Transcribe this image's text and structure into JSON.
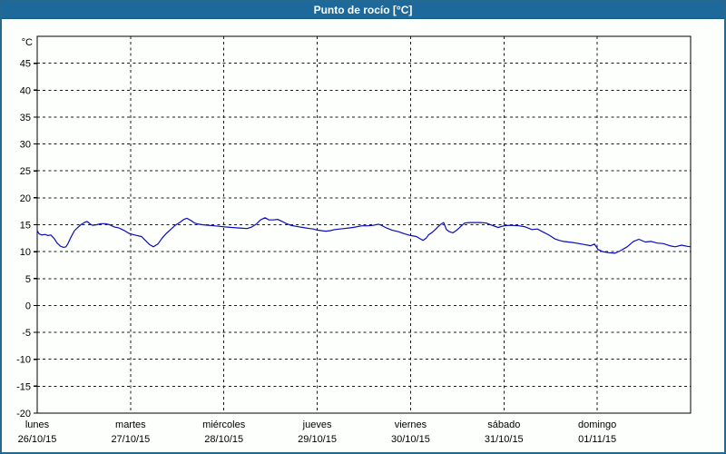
{
  "window": {
    "title": "Punto de rocío [°C]"
  },
  "colors": {
    "titlebar_bg": "#1e699c",
    "titlebar_text": "#ffffff",
    "frame_border": "#26698f",
    "plot_background": "#fdfffd",
    "axis": "#000000",
    "grid": "#1a1a1a",
    "line": "#0a0ac0"
  },
  "chart_data": {
    "type": "line",
    "title": "Punto de rocío [°C]",
    "y_unit": "°C",
    "ylim": [
      -20,
      50
    ],
    "y_tick_step": 5,
    "y_tick_labels": [
      45,
      40,
      35,
      30,
      25,
      20,
      15,
      10,
      5,
      0,
      -5,
      -10,
      -15,
      -20
    ],
    "grid": "dashed",
    "x_total_hours": 168,
    "x_days": [
      {
        "name": "lunes",
        "date": "26/10/15"
      },
      {
        "name": "martes",
        "date": "27/10/15"
      },
      {
        "name": "miércoles",
        "date": "28/10/15"
      },
      {
        "name": "jueves",
        "date": "29/10/15"
      },
      {
        "name": "viernes",
        "date": "30/10/15"
      },
      {
        "name": "sábado",
        "date": "31/10/15"
      },
      {
        "name": "domingo",
        "date": "01/11/15"
      }
    ],
    "series": [
      {
        "name": "Punto de rocío",
        "color": "#0a0ac0",
        "points": [
          [
            0,
            13.9
          ],
          [
            0.5,
            13.3
          ],
          [
            1.2,
            13.1
          ],
          [
            2,
            13.2
          ],
          [
            2.8,
            13.0
          ],
          [
            3.5,
            13.1
          ],
          [
            4.4,
            12.4
          ],
          [
            5.1,
            11.6
          ],
          [
            6,
            11.0
          ],
          [
            6.8,
            10.8
          ],
          [
            7.4,
            10.9
          ],
          [
            7.9,
            11.5
          ],
          [
            8.6,
            12.6
          ],
          [
            9.6,
            13.9
          ],
          [
            10.3,
            14.4
          ],
          [
            11.2,
            15.0
          ],
          [
            12.1,
            15.4
          ],
          [
            12.8,
            15.6
          ],
          [
            13.7,
            15.1
          ],
          [
            14.2,
            14.9
          ],
          [
            15.3,
            15.0
          ],
          [
            16.4,
            15.2
          ],
          [
            17.5,
            15.2
          ],
          [
            18.6,
            15.0
          ],
          [
            19.8,
            14.6
          ],
          [
            21,
            14.4
          ],
          [
            22.2,
            14.0
          ],
          [
            23.6,
            13.4
          ],
          [
            24.5,
            13.2
          ],
          [
            25.7,
            13.0
          ],
          [
            26.8,
            12.8
          ],
          [
            27.8,
            12.1
          ],
          [
            28.9,
            11.3
          ],
          [
            29.9,
            10.9
          ],
          [
            31,
            11.4
          ],
          [
            32.1,
            12.5
          ],
          [
            33.2,
            13.4
          ],
          [
            34.3,
            14.1
          ],
          [
            35.5,
            14.9
          ],
          [
            36.6,
            15.4
          ],
          [
            37.7,
            16.0
          ],
          [
            38.5,
            16.2
          ],
          [
            39.5,
            15.8
          ],
          [
            40.5,
            15.3
          ],
          [
            41.5,
            15.1
          ],
          [
            42.5,
            15.0
          ],
          [
            44,
            14.9
          ],
          [
            45.5,
            14.8
          ],
          [
            47,
            14.7
          ],
          [
            48.2,
            14.6
          ],
          [
            50,
            14.5
          ],
          [
            52,
            14.4
          ],
          [
            54,
            14.3
          ],
          [
            55.2,
            14.6
          ],
          [
            56.3,
            15.1
          ],
          [
            57.4,
            15.9
          ],
          [
            58.6,
            16.3
          ],
          [
            59.6,
            15.9
          ],
          [
            60.7,
            15.9
          ],
          [
            61.8,
            16.0
          ],
          [
            63,
            15.6
          ],
          [
            64.1,
            15.2
          ],
          [
            65.2,
            14.9
          ],
          [
            66.6,
            14.7
          ],
          [
            68.3,
            14.5
          ],
          [
            70,
            14.3
          ],
          [
            71,
            14.2
          ],
          [
            72,
            14.0
          ],
          [
            73,
            13.9
          ],
          [
            74.2,
            13.8
          ],
          [
            75.4,
            13.9
          ],
          [
            76.5,
            14.1
          ],
          [
            78.9,
            14.3
          ],
          [
            81.2,
            14.5
          ],
          [
            83.5,
            14.8
          ],
          [
            85,
            14.8
          ],
          [
            86.5,
            14.9
          ],
          [
            87.7,
            15.1
          ],
          [
            88.5,
            14.9
          ],
          [
            89.8,
            14.4
          ],
          [
            91.2,
            14.0
          ],
          [
            92.9,
            13.7
          ],
          [
            94.5,
            13.3
          ],
          [
            96,
            13.0
          ],
          [
            97.5,
            12.8
          ],
          [
            98.4,
            12.4
          ],
          [
            99.2,
            12.1
          ],
          [
            100,
            12.5
          ],
          [
            100.6,
            13.1
          ],
          [
            101.4,
            13.5
          ],
          [
            102.2,
            14.0
          ],
          [
            103,
            14.6
          ],
          [
            103.8,
            15.1
          ],
          [
            104.5,
            15.4
          ],
          [
            105.2,
            14.1
          ],
          [
            106,
            13.7
          ],
          [
            106.9,
            13.5
          ],
          [
            107.7,
            13.9
          ],
          [
            108.5,
            14.4
          ],
          [
            109.2,
            14.9
          ],
          [
            109.9,
            15.3
          ],
          [
            111,
            15.4
          ],
          [
            112.5,
            15.4
          ],
          [
            114,
            15.4
          ],
          [
            115.5,
            15.3
          ],
          [
            116.9,
            14.9
          ],
          [
            118.5,
            14.5
          ],
          [
            120,
            14.8
          ],
          [
            121.6,
            14.9
          ],
          [
            123.9,
            14.8
          ],
          [
            125.5,
            14.6
          ],
          [
            127.2,
            14.1
          ],
          [
            128.6,
            14.2
          ],
          [
            130.2,
            13.6
          ],
          [
            131.8,
            13.0
          ],
          [
            133,
            12.4
          ],
          [
            134.2,
            12.1
          ],
          [
            135.3,
            11.9
          ],
          [
            137.7,
            11.7
          ],
          [
            140,
            11.4
          ],
          [
            142.3,
            11.1
          ],
          [
            143.3,
            11.4
          ],
          [
            144.2,
            10.4
          ],
          [
            145.4,
            10.0
          ],
          [
            147,
            9.8
          ],
          [
            148.5,
            9.7
          ],
          [
            150,
            10.2
          ],
          [
            151.7,
            10.9
          ],
          [
            153.3,
            11.9
          ],
          [
            154.7,
            12.3
          ],
          [
            156.3,
            11.8
          ],
          [
            157.9,
            11.9
          ],
          [
            159.4,
            11.6
          ],
          [
            161,
            11.5
          ],
          [
            162.6,
            11.1
          ],
          [
            164,
            10.9
          ],
          [
            165.7,
            11.2
          ],
          [
            167,
            11.0
          ],
          [
            168,
            10.9
          ]
        ]
      }
    ]
  }
}
